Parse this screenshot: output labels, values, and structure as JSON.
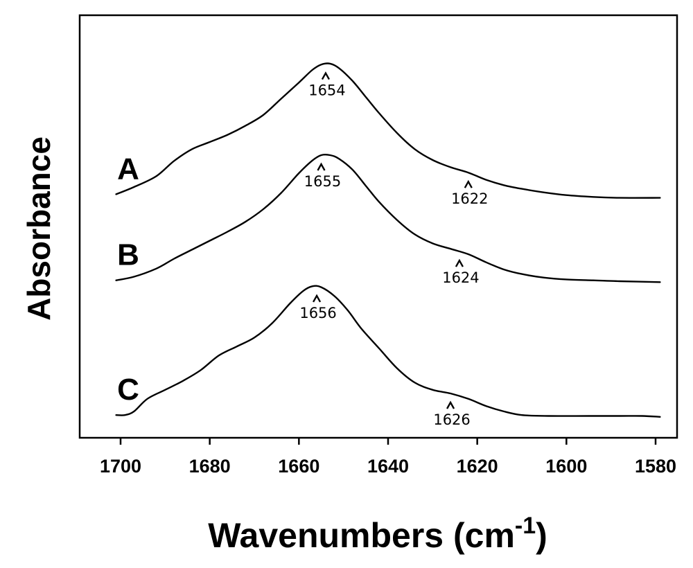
{
  "chart_data": {
    "type": "line",
    "xlabel": "Wavenumbers (cm",
    "xlabel_superscript": "-1",
    "xlabel_suffix": ")",
    "ylabel": "Absorbance",
    "xlim": [
      1710,
      1578
    ],
    "x_reversed": true,
    "x_ticks": [
      "1700",
      "1680",
      "1660",
      "1640",
      "1620",
      "1600",
      "1580"
    ],
    "grid": false,
    "series": [
      {
        "name": "A",
        "points": [
          [
            1701,
            0.26
          ],
          [
            1697,
            0.3
          ],
          [
            1692,
            0.36
          ],
          [
            1688,
            0.445
          ],
          [
            1684,
            0.51
          ],
          [
            1680,
            0.55
          ],
          [
            1676,
            0.59
          ],
          [
            1672,
            0.64
          ],
          [
            1668,
            0.7
          ],
          [
            1664,
            0.79
          ],
          [
            1660,
            0.88
          ],
          [
            1657,
            0.95
          ],
          [
            1655,
            0.98
          ],
          [
            1653,
            0.985
          ],
          [
            1651,
            0.96
          ],
          [
            1648,
            0.89
          ],
          [
            1645,
            0.8
          ],
          [
            1642,
            0.71
          ],
          [
            1638,
            0.6
          ],
          [
            1634,
            0.51
          ],
          [
            1630,
            0.45
          ],
          [
            1626,
            0.41
          ],
          [
            1622,
            0.38
          ],
          [
            1618,
            0.34
          ],
          [
            1614,
            0.31
          ],
          [
            1610,
            0.29
          ],
          [
            1605,
            0.27
          ],
          [
            1600,
            0.255
          ],
          [
            1594,
            0.245
          ],
          [
            1588,
            0.24
          ],
          [
            1579,
            0.24
          ]
        ],
        "peaks": [
          {
            "x": 1654,
            "label": "1654"
          },
          {
            "x": 1622,
            "label": "1622"
          }
        ]
      },
      {
        "name": "B",
        "points": [
          [
            1701,
            0.255
          ],
          [
            1697,
            0.275
          ],
          [
            1692,
            0.32
          ],
          [
            1688,
            0.375
          ],
          [
            1684,
            0.425
          ],
          [
            1680,
            0.475
          ],
          [
            1676,
            0.525
          ],
          [
            1672,
            0.58
          ],
          [
            1668,
            0.65
          ],
          [
            1664,
            0.74
          ],
          [
            1660,
            0.85
          ],
          [
            1657,
            0.92
          ],
          [
            1655,
            0.95
          ],
          [
            1653,
            0.95
          ],
          [
            1651,
            0.93
          ],
          [
            1648,
            0.87
          ],
          [
            1645,
            0.78
          ],
          [
            1642,
            0.69
          ],
          [
            1638,
            0.59
          ],
          [
            1634,
            0.51
          ],
          [
            1630,
            0.46
          ],
          [
            1626,
            0.43
          ],
          [
            1622,
            0.4
          ],
          [
            1618,
            0.355
          ],
          [
            1614,
            0.315
          ],
          [
            1610,
            0.29
          ],
          [
            1605,
            0.27
          ],
          [
            1600,
            0.26
          ],
          [
            1594,
            0.255
          ],
          [
            1588,
            0.25
          ],
          [
            1579,
            0.245
          ]
        ],
        "peaks": [
          {
            "x": 1655,
            "label": "1655"
          },
          {
            "x": 1624,
            "label": "1624"
          }
        ]
      },
      {
        "name": "C",
        "points": [
          [
            1701,
            0.18
          ],
          [
            1699,
            0.18
          ],
          [
            1697,
            0.2
          ],
          [
            1694,
            0.27
          ],
          [
            1690,
            0.32
          ],
          [
            1686,
            0.37
          ],
          [
            1682,
            0.43
          ],
          [
            1678,
            0.51
          ],
          [
            1674,
            0.56
          ],
          [
            1670,
            0.61
          ],
          [
            1666,
            0.69
          ],
          [
            1662,
            0.8
          ],
          [
            1659,
            0.87
          ],
          [
            1657,
            0.895
          ],
          [
            1655,
            0.89
          ],
          [
            1652,
            0.84
          ],
          [
            1649,
            0.76
          ],
          [
            1646,
            0.66
          ],
          [
            1642,
            0.55
          ],
          [
            1638,
            0.44
          ],
          [
            1634,
            0.36
          ],
          [
            1630,
            0.32
          ],
          [
            1626,
            0.3
          ],
          [
            1622,
            0.27
          ],
          [
            1618,
            0.23
          ],
          [
            1614,
            0.2
          ],
          [
            1610,
            0.18
          ],
          [
            1604,
            0.175
          ],
          [
            1595,
            0.175
          ],
          [
            1588,
            0.175
          ],
          [
            1583,
            0.175
          ],
          [
            1579,
            0.17
          ]
        ],
        "peaks": [
          {
            "x": 1656,
            "label": "1656"
          },
          {
            "x": 1626,
            "label": "1626"
          }
        ]
      }
    ],
    "series_offsets": {
      "A": 270,
      "B": 393,
      "C": 568
    },
    "series_scale": 260
  }
}
